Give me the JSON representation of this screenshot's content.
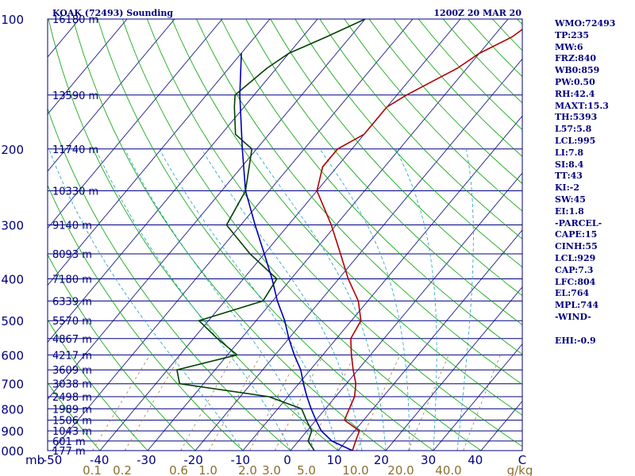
{
  "chart_data": {
    "type": "line",
    "title": "KOAK (72493) Sounding",
    "valid_time": "1200Z 20 MAR 20",
    "xlabel": "C",
    "ylabel": "mb",
    "xlim": [
      -50,
      50
    ],
    "ylim": [
      1000,
      100
    ],
    "y_scale": "log",
    "x_ticks": [
      "-50",
      "-40",
      "-30",
      "-20",
      "-10",
      "0",
      "10",
      "20",
      "30",
      "40",
      "C"
    ],
    "pressure_ticks": [
      {
        "p": 100,
        "label": "100"
      },
      {
        "p": 200,
        "label": "200"
      },
      {
        "p": 300,
        "label": "300"
      },
      {
        "p": 400,
        "label": "400"
      },
      {
        "p": 500,
        "label": "500"
      },
      {
        "p": 600,
        "label": "600"
      },
      {
        "p": 700,
        "label": "700"
      },
      {
        "p": 800,
        "label": "800"
      },
      {
        "p": 900,
        "label": "900"
      },
      {
        "p": 1000,
        "label": "1000"
      }
    ],
    "height_labels": [
      {
        "p": 100,
        "label": "16180 m"
      },
      {
        "p": 150,
        "label": "13590 m"
      },
      {
        "p": 200,
        "label": "11740 m"
      },
      {
        "p": 250,
        "label": "10330 m"
      },
      {
        "p": 300,
        "label": "9140 m"
      },
      {
        "p": 350,
        "label": "8093 m"
      },
      {
        "p": 400,
        "label": "7180 m"
      },
      {
        "p": 450,
        "label": "6339 m"
      },
      {
        "p": 500,
        "label": "5570 m"
      },
      {
        "p": 550,
        "label": "4867 m"
      },
      {
        "p": 600,
        "label": "4217 m"
      },
      {
        "p": 650,
        "label": "3609 m"
      },
      {
        "p": 700,
        "label": "3038 m"
      },
      {
        "p": 750,
        "label": "2498 m"
      },
      {
        "p": 800,
        "label": "1989 m"
      },
      {
        "p": 850,
        "label": "1506 m"
      },
      {
        "p": 900,
        "label": "1043 m"
      },
      {
        "p": 950,
        "label": "601 m"
      },
      {
        "p": 1000,
        "label": "177 m"
      }
    ],
    "mixing_ratio_labels": [
      "0.1",
      "0.2",
      "0.6",
      "1.0",
      "2.0",
      "3.0",
      "5.0",
      "10.0",
      "20.0",
      "40.0",
      "g/kg"
    ],
    "series": [
      {
        "color": "#b00000",
        "points": [
          [
            1016,
            9
          ],
          [
            1000,
            13
          ],
          [
            950,
            12
          ],
          [
            900,
            11
          ],
          [
            850,
            6
          ],
          [
            800,
            5
          ],
          [
            750,
            4
          ],
          [
            700,
            2
          ],
          [
            650,
            -1
          ],
          [
            600,
            -4
          ],
          [
            550,
            -7
          ],
          [
            500,
            -8
          ],
          [
            450,
            -12
          ],
          [
            400,
            -18
          ],
          [
            350,
            -24
          ],
          [
            300,
            -31
          ],
          [
            250,
            -40
          ],
          [
            220,
            -43
          ],
          [
            200,
            -43
          ],
          [
            185,
            -40
          ],
          [
            160,
            -40
          ],
          [
            150,
            -38
          ],
          [
            130,
            -32
          ],
          [
            120,
            -30
          ],
          [
            110,
            -26
          ],
          [
            100,
            -24
          ]
        ]
      },
      {
        "color": "#004000",
        "points": [
          [
            1016,
            4
          ],
          [
            1000,
            5
          ],
          [
            950,
            2
          ],
          [
            900,
            1
          ],
          [
            850,
            -2
          ],
          [
            800,
            -5
          ],
          [
            750,
            -14
          ],
          [
            700,
            -35
          ],
          [
            650,
            -38
          ],
          [
            600,
            -28
          ],
          [
            550,
            -35
          ],
          [
            500,
            -42
          ],
          [
            450,
            -32
          ],
          [
            400,
            -33
          ],
          [
            350,
            -43
          ],
          [
            300,
            -53
          ],
          [
            250,
            -55
          ],
          [
            200,
            -61
          ],
          [
            185,
            -67
          ],
          [
            160,
            -72
          ],
          [
            150,
            -74
          ],
          [
            130,
            -72
          ],
          [
            120,
            -70
          ],
          [
            110,
            -65
          ],
          [
            100,
            -60
          ]
        ]
      },
      {
        "color": "#0000b0",
        "points": [
          [
            1000,
            13
          ],
          [
            950,
            7
          ],
          [
            900,
            3
          ],
          [
            850,
            0
          ],
          [
            800,
            -3
          ],
          [
            750,
            -6
          ],
          [
            700,
            -9
          ],
          [
            650,
            -12
          ],
          [
            600,
            -16
          ],
          [
            550,
            -20
          ],
          [
            500,
            -24
          ],
          [
            450,
            -29
          ],
          [
            400,
            -34
          ],
          [
            350,
            -40
          ],
          [
            300,
            -47
          ],
          [
            250,
            -55
          ],
          [
            200,
            -63
          ],
          [
            150,
            -73
          ],
          [
            120,
            -80
          ]
        ]
      }
    ]
  },
  "stats": [
    "WMO:72493",
    "TP:235",
    "MW:6",
    "FRZ:840",
    "WB0:859",
    "PW:0.50",
    "RH:42.4",
    "MAXT:15.3",
    "TH:5393",
    "L57:5.8",
    "LCL:995",
    "LI:7.8",
    "SI:8.4",
    "TT:43",
    "KI:-2",
    "SW:45",
    "EI:1.8",
    "-PARCEL-",
    "CAPE:15",
    "CINH:55",
    "LCL:929",
    "CAP:7.3",
    "LFC:804",
    "EL:764",
    "MPL:744",
    "-WIND-",
    "",
    "EHI:-0.9"
  ],
  "colors": {
    "isobar": "#00007f",
    "isotherm": "#00007f",
    "dry_adiabat": "#00a000",
    "moist_adiabat": "#1c9cc6",
    "mixing_ratio": "#a08040",
    "label_text": "#00007f",
    "mixing_label_text": "#8a7030"
  }
}
